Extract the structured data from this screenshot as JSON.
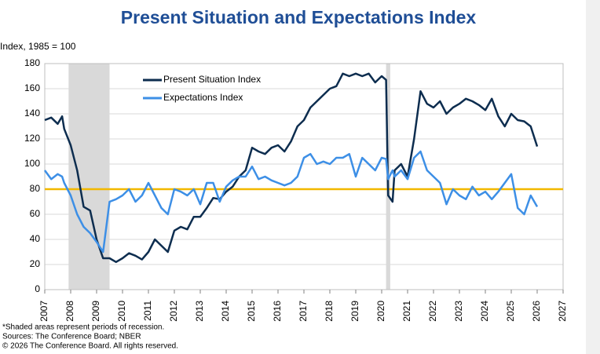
{
  "chart_data": {
    "type": "line",
    "title": "Present Situation and Expectations Index",
    "y_label": "Index, 1985 = 100",
    "x": [
      2007.0,
      2007.25,
      2007.5,
      2007.67,
      2007.75,
      2008.0,
      2008.25,
      2008.5,
      2008.75,
      2009.0,
      2009.25,
      2009.5,
      2009.75,
      2010.0,
      2010.25,
      2010.5,
      2010.75,
      2011.0,
      2011.25,
      2011.5,
      2011.75,
      2012.0,
      2012.25,
      2012.5,
      2012.75,
      2013.0,
      2013.25,
      2013.5,
      2013.75,
      2014.0,
      2014.25,
      2014.5,
      2014.75,
      2015.0,
      2015.25,
      2015.5,
      2015.75,
      2016.0,
      2016.25,
      2016.5,
      2016.75,
      2017.0,
      2017.25,
      2017.5,
      2017.75,
      2018.0,
      2018.25,
      2018.5,
      2018.75,
      2019.0,
      2019.25,
      2019.5,
      2019.75,
      2020.0,
      2020.17,
      2020.25,
      2020.42,
      2020.5,
      2020.75,
      2021.0,
      2021.25,
      2021.5,
      2021.75,
      2022.0,
      2022.25,
      2022.5,
      2022.75,
      2023.0,
      2023.25,
      2023.5,
      2023.75,
      2024.0,
      2024.25,
      2024.5,
      2024.75,
      2025.0,
      2025.25,
      2025.5,
      2025.75,
      2026.0
    ],
    "series": [
      {
        "name": "Present Situation Index",
        "color": "#0d2d4f",
        "values": [
          135,
          137,
          132,
          138,
          128,
          115,
          95,
          66,
          63,
          40,
          25,
          25,
          22,
          25,
          29,
          27,
          24,
          30,
          40,
          35,
          30,
          47,
          50,
          48,
          58,
          58,
          65,
          73,
          72,
          78,
          82,
          90,
          95,
          113,
          110,
          108,
          113,
          115,
          110,
          118,
          130,
          135,
          145,
          150,
          155,
          160,
          162,
          172,
          170,
          172,
          170,
          172,
          165,
          170,
          167,
          75,
          70,
          95,
          100,
          90,
          120,
          158,
          148,
          145,
          150,
          140,
          145,
          148,
          152,
          150,
          147,
          143,
          152,
          138,
          130,
          140,
          135,
          134,
          130,
          114
        ]
      },
      {
        "name": "Expectations Index",
        "color": "#3d8fe6",
        "values": [
          95,
          88,
          92,
          90,
          85,
          75,
          60,
          50,
          45,
          38,
          30,
          70,
          72,
          75,
          80,
          70,
          75,
          85,
          75,
          65,
          60,
          80,
          78,
          75,
          80,
          68,
          85,
          85,
          70,
          82,
          87,
          90,
          90,
          98,
          88,
          90,
          87,
          85,
          83,
          85,
          90,
          105,
          108,
          100,
          102,
          100,
          105,
          105,
          108,
          90,
          105,
          100,
          95,
          105,
          104,
          88,
          95,
          90,
          95,
          88,
          105,
          110,
          95,
          90,
          85,
          68,
          80,
          75,
          72,
          82,
          75,
          78,
          72,
          78,
          85,
          92,
          65,
          60,
          75,
          66
        ]
      }
    ],
    "recessions": [
      [
        2007.92,
        2009.5
      ],
      [
        2020.17,
        2020.33
      ]
    ],
    "recession_color": "#d9d9d9",
    "reference_line": {
      "value": 80,
      "color": "#f2b800"
    },
    "xlim": [
      2007,
      2027
    ],
    "xticks": [
      2007,
      2008,
      2009,
      2010,
      2011,
      2012,
      2013,
      2014,
      2015,
      2016,
      2017,
      2018,
      2019,
      2020,
      2021,
      2022,
      2023,
      2024,
      2025,
      2026,
      2027
    ],
    "ylim": [
      0,
      180
    ],
    "yticks": [
      0,
      20,
      40,
      60,
      80,
      100,
      120,
      140,
      160,
      180
    ],
    "grid": true,
    "legend": "upper left",
    "notes": [
      "*Shaded areas represent periods of recession.",
      "Sources: The Conference Board; NBER",
      "© 2026 The Conference Board. All rights reserved."
    ]
  }
}
